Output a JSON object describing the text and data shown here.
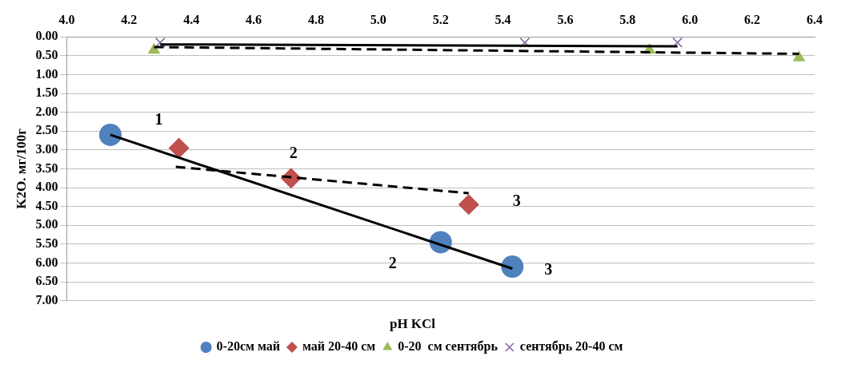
{
  "chart_data": {
    "type": "scatter",
    "xlabel": "pH KCl",
    "ylabel": "K2O. мг/100г",
    "xlim": [
      4.0,
      6.4
    ],
    "xticks": [
      {
        "value": 4.0,
        "label": "4.0"
      },
      4.2,
      4.4,
      4.6,
      4.8,
      {
        "value": 5.0,
        "label": "5.0"
      },
      5.2,
      5.4,
      5.6,
      5.8,
      {
        "value": 6.0,
        "label": "6.0"
      },
      6.2,
      6.4
    ],
    "ylim": [
      7,
      0
    ],
    "yticks": [
      {
        "value": 0,
        "label": "0.00"
      },
      {
        "value": 0.5,
        "label": "0.50"
      },
      {
        "value": 1,
        "label": "1.00"
      },
      {
        "value": 1.5,
        "label": "1.50"
      },
      {
        "value": 2,
        "label": "2.00"
      },
      {
        "value": 2.5,
        "label": "2.50"
      },
      {
        "value": 3,
        "label": "3.00"
      },
      {
        "value": 3.5,
        "label": "3.50"
      },
      {
        "value": 4,
        "label": "4.00"
      },
      {
        "value": 4.5,
        "label": "4.50"
      },
      {
        "value": 5,
        "label": "5.00"
      },
      {
        "value": 5.5,
        "label": "5.50"
      },
      {
        "value": 6,
        "label": "6.00"
      },
      {
        "value": 6.5,
        "label": "6.50"
      },
      {
        "value": 7,
        "label": "7.00"
      }
    ],
    "grid": "y",
    "legend": "bottom",
    "series": [
      {
        "name": "0-20см май",
        "color": "#4f81bd",
        "marker": "circle",
        "x": [
          4.14,
          5.2,
          5.43
        ],
        "values": [
          2.6,
          5.45,
          6.1
        ]
      },
      {
        "name": "май 20-40 см",
        "color": "#c0504d",
        "marker": "diamond",
        "x": [
          4.36,
          4.72,
          5.29
        ],
        "values": [
          2.95,
          3.75,
          4.45
        ]
      },
      {
        "name": "0-20  см сентябрь",
        "color": "#9bbb59",
        "marker": "triangle",
        "x": [
          4.28,
          5.87,
          6.35
        ],
        "values": [
          0.35,
          0.35,
          0.55
        ]
      },
      {
        "name": "сентябрь 20-40 см",
        "color": "#8064a2",
        "marker": "cross",
        "x": [
          4.3,
          5.47,
          5.96
        ],
        "values": [
          0.15,
          0.15,
          0.15
        ]
      },
      {
        "type": "line",
        "color": "#000000",
        "line_style": "solid",
        "x": [
          4.14,
          5.43
        ],
        "values": [
          2.6,
          6.15
        ]
      },
      {
        "type": "line",
        "color": "#000000",
        "line_style": "dashed",
        "x": [
          4.35,
          5.29
        ],
        "values": [
          3.45,
          4.15
        ]
      },
      {
        "type": "line",
        "color": "#000000",
        "line_style": "solid",
        "x": [
          4.3,
          5.96
        ],
        "values": [
          0.2,
          0.25
        ]
      },
      {
        "type": "line",
        "color": "#000000",
        "line_style": "dashed",
        "x": [
          4.28,
          6.35
        ],
        "values": [
          0.27,
          0.45
        ]
      }
    ],
    "annotations": [
      {
        "text": "1",
        "x": 4.36,
        "y": 2.95
      },
      {
        "text": "2",
        "x": 4.72,
        "y": 3.75
      },
      {
        "text": "3",
        "x": 5.29,
        "y": 4.45
      },
      {
        "text": "2",
        "x": 5.2,
        "y": 5.45
      },
      {
        "text": "3",
        "x": 5.43,
        "y": 6.1
      }
    ]
  }
}
